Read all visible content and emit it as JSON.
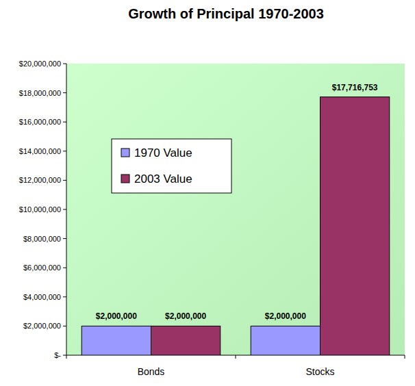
{
  "chart_data": {
    "type": "bar",
    "title": "Growth of Principal 1970-2003",
    "categories": [
      "Bonds",
      "Stocks"
    ],
    "series": [
      {
        "name": "1970 Value",
        "color": "#9999ff",
        "values": [
          2000000,
          2000000
        ],
        "value_labels": [
          "$2,000,000",
          "$2,000,000"
        ]
      },
      {
        "name": "2003 Value",
        "color": "#993366",
        "values": [
          2000000,
          17716753
        ],
        "value_labels": [
          "$2,000,000",
          "$17,716,753"
        ]
      }
    ],
    "ylim": [
      0,
      20000000
    ],
    "yticks": [
      {
        "value": 0,
        "label": "$-"
      },
      {
        "value": 2000000,
        "label": "$2,000,000"
      },
      {
        "value": 4000000,
        "label": "$4,000,000"
      },
      {
        "value": 6000000,
        "label": "$6,000,000"
      },
      {
        "value": 8000000,
        "label": "$8,000,000"
      },
      {
        "value": 10000000,
        "label": "$10,000,000"
      },
      {
        "value": 12000000,
        "label": "$12,000,000"
      },
      {
        "value": 14000000,
        "label": "$14,000,000"
      },
      {
        "value": 16000000,
        "label": "$16,000,000"
      },
      {
        "value": 18000000,
        "label": "$18,000,000"
      },
      {
        "value": 20000000,
        "label": "$20,000,000"
      }
    ],
    "grid": false,
    "data_labels": true,
    "legend": "upper left"
  }
}
